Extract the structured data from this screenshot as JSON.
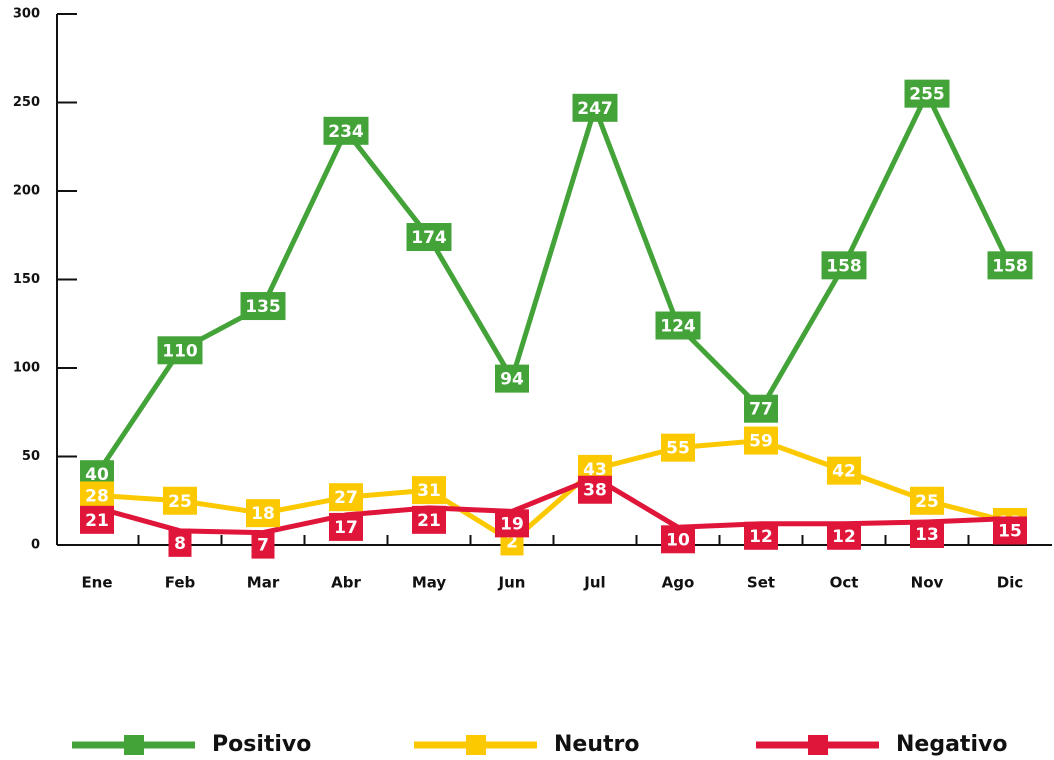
{
  "chart_data": {
    "type": "line",
    "categories": [
      "Ene",
      "Feb",
      "Mar",
      "Abr",
      "May",
      "Jun",
      "Jul",
      "Ago",
      "Set",
      "Oct",
      "Nov",
      "Dic"
    ],
    "series": [
      {
        "name": "Positivo",
        "color": "#43a338",
        "values": [
          40,
          110,
          135,
          234,
          174,
          94,
          247,
          124,
          77,
          158,
          255,
          158
        ]
      },
      {
        "name": "Neutro",
        "color": "#fcc900",
        "values": [
          28,
          25,
          18,
          27,
          31,
          2,
          43,
          55,
          59,
          42,
          25,
          13
        ]
      },
      {
        "name": "Negativo",
        "color": "#e0153a",
        "values": [
          21,
          8,
          7,
          17,
          21,
          19,
          38,
          10,
          12,
          12,
          13,
          15
        ]
      }
    ],
    "ylim": [
      0,
      300
    ],
    "yticks": [
      0,
      50,
      100,
      150,
      200,
      250,
      300
    ],
    "legend": "bottom"
  }
}
